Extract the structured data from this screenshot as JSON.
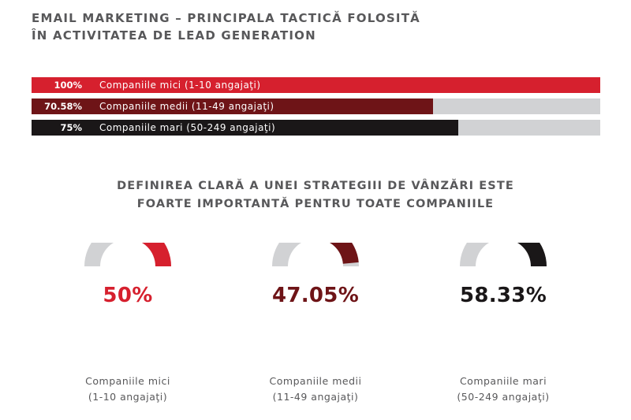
{
  "top_title": {
    "line1": "EMAIL MARKETING – PRINCIPALA TACTICĂ FOLOSITĂ",
    "line2": "ÎN ACTIVITATEA DE LEAD GENERATION"
  },
  "second_title": {
    "line1": "DEFINIREA CLARĂ A UNEI STRATEGIII DE VÂNZĂRI ESTE",
    "line2": "FOARTE IMPORTANTĂ PENTRU TOATE COMPANIILE"
  },
  "colors": {
    "track": "#d1d2d4",
    "small": "#d6202e",
    "medium": "#6e1417",
    "large": "#1a1718"
  },
  "chart_data": [
    {
      "type": "bar",
      "orientation": "horizontal",
      "xlim": [
        0,
        100
      ],
      "categories": [
        "Companiile mici (1-10 angajaţi)",
        "Companiile medii (11-49 angajaţi)",
        "Companiile mari (50-249 angajaţi)"
      ],
      "values": [
        100,
        70.58,
        75
      ],
      "value_labels": [
        "100%",
        "70.58%",
        "75%"
      ],
      "colors": [
        "#d6202e",
        "#6e1417",
        "#1a1718"
      ]
    },
    {
      "type": "pie",
      "style": "half-donut gauge",
      "categories_line1": [
        "Companiile mici",
        "Companiile medii",
        "Companiile mari"
      ],
      "categories_line2": [
        "(1-10 angajaţi)",
        "(11-49 angajaţi)",
        "(50-249 angajaţi)"
      ],
      "values": [
        50,
        47.05,
        58.33
      ],
      "value_labels": [
        "50%",
        "47.05%",
        "58.33%"
      ],
      "colors": [
        "#d6202e",
        "#6e1417",
        "#1a1718"
      ]
    }
  ]
}
